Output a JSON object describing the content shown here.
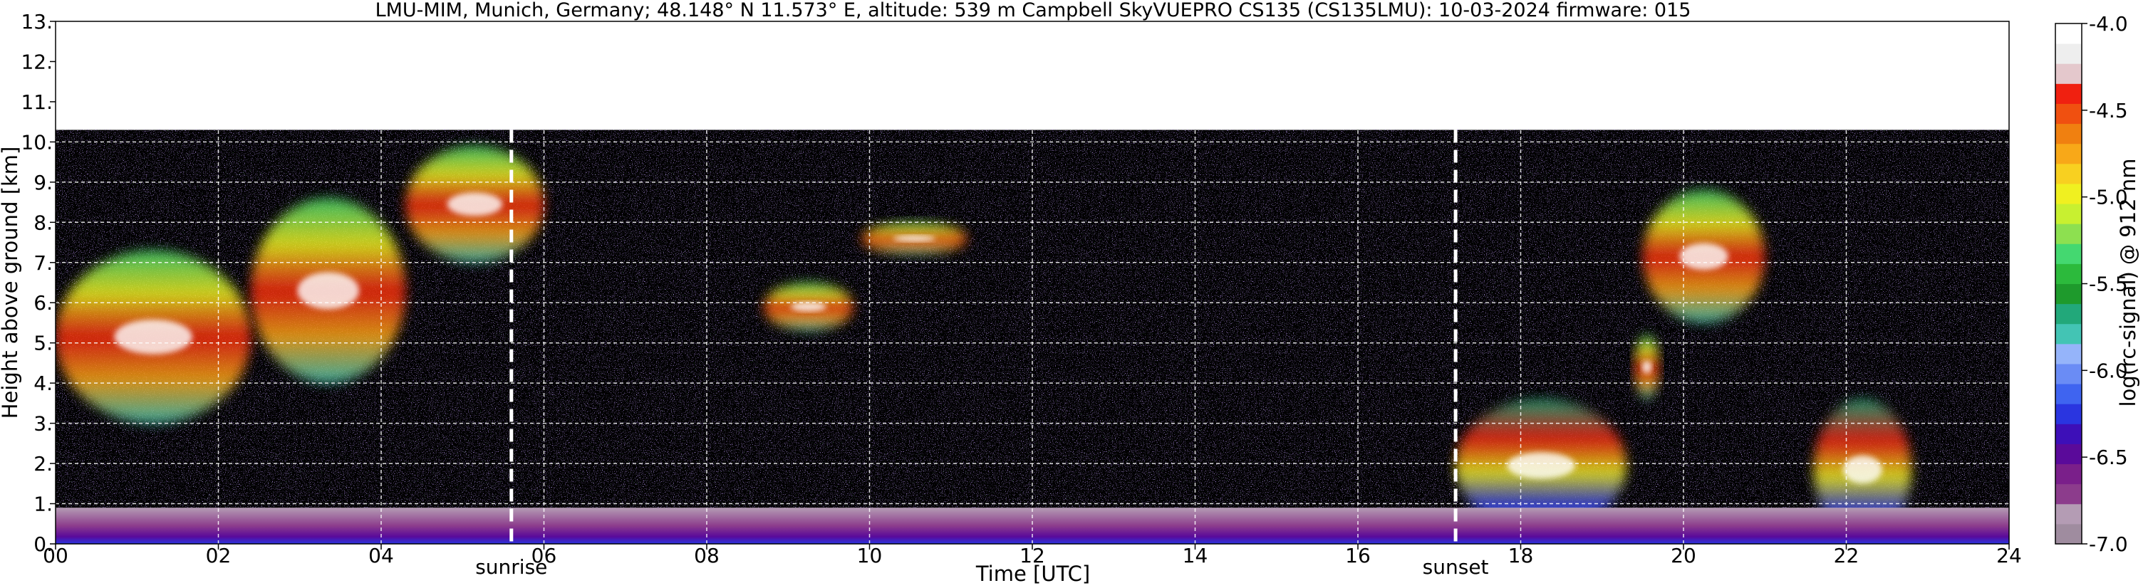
{
  "chart_data": {
    "type": "heatmap",
    "title": "LMU-MIM, Munich, Germany; 48.148° N 11.573° E, altitude: 539 m    Campbell SkyVUEPRO CS135 (CS135LMU): 10-03-2024    firmware: 015",
    "xlabel": "Time [UTC]",
    "ylabel": "Height above ground [km]",
    "xlim": [
      0,
      24
    ],
    "ylim": [
      0,
      13
    ],
    "x_ticks": [
      "00",
      "02",
      "04",
      "06",
      "08",
      "10",
      "12",
      "14",
      "16",
      "18",
      "20",
      "22",
      "24"
    ],
    "x_tick_values": [
      0,
      2,
      4,
      6,
      8,
      10,
      12,
      14,
      16,
      18,
      20,
      22,
      24
    ],
    "y_ticks": [
      "0.",
      "1.",
      "2.",
      "3.",
      "4.",
      "5.",
      "6.",
      "7.",
      "8.",
      "9.",
      "10.",
      "11.",
      "12.",
      "13."
    ],
    "y_tick_values": [
      0,
      1,
      2,
      3,
      4,
      5,
      6,
      7,
      8,
      9,
      10,
      11,
      12,
      13
    ],
    "grid": true,
    "data_top_km": 10.3,
    "annotations": [
      {
        "label": "sunrise",
        "x": 5.6
      },
      {
        "label": "sunset",
        "x": 17.2
      }
    ],
    "colorbar": {
      "label": "log(rc-signal) @ 912 nm",
      "range": [
        -7.0,
        -4.0
      ],
      "ticks": [
        "-4.0",
        "-4.5",
        "-5.0",
        "-5.5",
        "-6.0",
        "-6.5",
        "-7.0"
      ],
      "tick_values": [
        -4.0,
        -4.5,
        -5.0,
        -5.5,
        -6.0,
        -6.5,
        -7.0
      ],
      "colors": [
        "#9f8c9f",
        "#b49cb4",
        "#8c3c8c",
        "#7a1f8a",
        "#5a0a9a",
        "#3d0fb8",
        "#2a35e0",
        "#3f64f0",
        "#6a8cf5",
        "#95b4fa",
        "#43c4b4",
        "#22a87a",
        "#1e9a2c",
        "#2cba3c",
        "#44d870",
        "#8de050",
        "#c8f030",
        "#f0f020",
        "#f8d020",
        "#f8a818",
        "#f08010",
        "#f05010",
        "#f02010",
        "#e4c8cc",
        "#eeeeee",
        "#ffffff"
      ]
    },
    "features": [
      {
        "name": "cloud-layer-night-early",
        "x": [
          0,
          2.4
        ],
        "y_km": [
          3.0,
          7.3
        ]
      },
      {
        "name": "cloud-layer-rising",
        "x": [
          2.4,
          4.3
        ],
        "y_km": [
          4.0,
          8.6
        ]
      },
      {
        "name": "cloud-patch-high",
        "x": [
          4.3,
          6.0
        ],
        "y_km": [
          7.0,
          9.9
        ]
      },
      {
        "name": "cloud-streak-mid",
        "x": [
          8.7,
          9.8
        ],
        "y_km": [
          5.3,
          6.5
        ]
      },
      {
        "name": "cloud-streak-upper",
        "x": [
          9.9,
          11.2
        ],
        "y_km": [
          7.2,
          8.0
        ]
      },
      {
        "name": "cloud-layer-low-evening",
        "x": [
          17.2,
          19.3
        ],
        "y_km": [
          0.3,
          3.6
        ]
      },
      {
        "name": "cloud-column-evening",
        "x": [
          19.4,
          19.7
        ],
        "y_km": [
          3.6,
          5.2
        ]
      },
      {
        "name": "cloud-streak-evening-high",
        "x": [
          19.5,
          21.0
        ],
        "y_km": [
          5.5,
          8.8
        ]
      },
      {
        "name": "cloud-layer-late",
        "x": [
          21.6,
          22.8
        ],
        "y_km": [
          0.1,
          3.6
        ]
      }
    ]
  }
}
